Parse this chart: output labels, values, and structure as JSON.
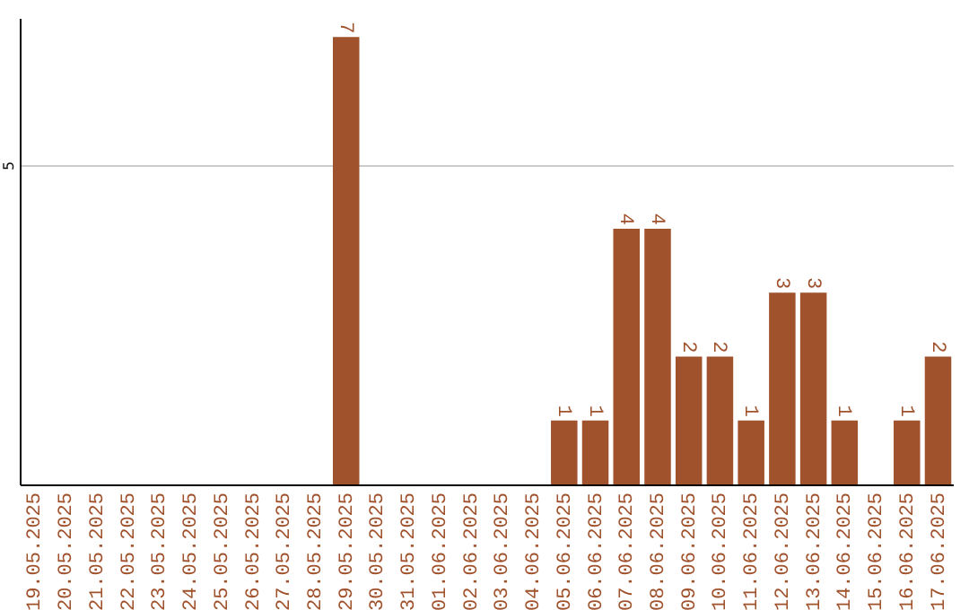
{
  "chart_data": {
    "type": "bar",
    "categories": [
      "19.05.2025",
      "20.05.2025",
      "21.05.2025",
      "22.05.2025",
      "23.05.2025",
      "24.05.2025",
      "25.05.2025",
      "26.05.2025",
      "27.05.2025",
      "28.05.2025",
      "29.05.2025",
      "30.05.2025",
      "31.05.2025",
      "01.06.2025",
      "02.06.2025",
      "03.06.2025",
      "04.06.2025",
      "05.06.2025",
      "06.06.2025",
      "07.06.2025",
      "08.06.2025",
      "09.06.2025",
      "10.06.2025",
      "11.06.2025",
      "12.06.2025",
      "13.06.2025",
      "14.06.2025",
      "15.06.2025",
      "16.06.2025",
      "17.06.2025"
    ],
    "values": [
      0,
      0,
      0,
      0,
      0,
      0,
      0,
      0,
      0,
      0,
      7,
      0,
      0,
      0,
      0,
      0,
      0,
      1,
      1,
      4,
      4,
      2,
      2,
      1,
      3,
      3,
      1,
      0,
      1,
      2
    ],
    "value_labels": [
      null,
      null,
      null,
      null,
      null,
      null,
      null,
      null,
      null,
      null,
      "7",
      null,
      null,
      null,
      null,
      null,
      null,
      "1",
      "1",
      "4",
      "4",
      "2",
      "2",
      "1",
      "3",
      "3",
      "1",
      null,
      "1",
      "2"
    ],
    "color": "#a0522d",
    "ylim": [
      0,
      7.3
    ],
    "yticks": [
      5
    ],
    "grid": "y"
  }
}
